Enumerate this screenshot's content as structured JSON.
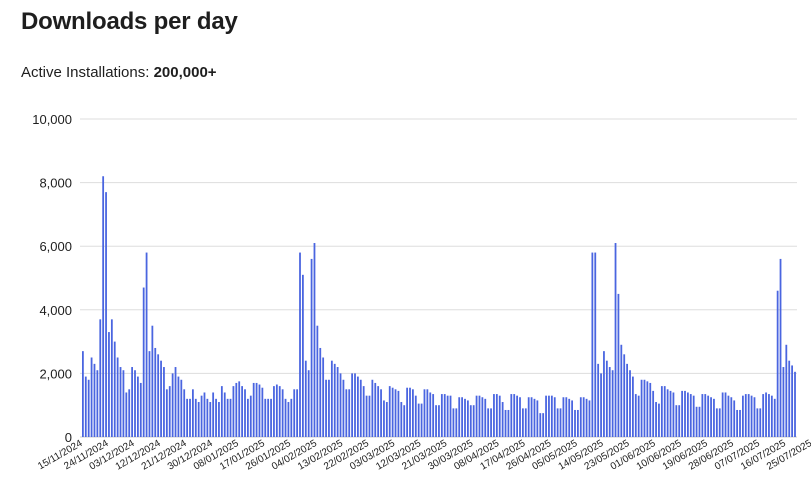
{
  "page": {
    "title": "Downloads per day",
    "installs_label": "Active Installations:",
    "installs_value": "200,000+"
  },
  "chart_data": {
    "type": "bar",
    "title": "Downloads per day",
    "xlabel": "",
    "ylabel": "",
    "ylim": [
      0,
      10000
    ],
    "yticks": [
      0,
      2000,
      4000,
      6000,
      8000,
      10000
    ],
    "ytick_labels": [
      "0",
      "2,000",
      "4,000",
      "6,000",
      "8,000",
      "10,000"
    ],
    "grid": true,
    "bar_color": "#4a65e0",
    "gridline_color": "#dddddd",
    "start_date": "15/11/2024",
    "xtick_labels": [
      "15/11/2024",
      "24/11/2024",
      "03/12/2024",
      "12/12/2024",
      "21/12/2024",
      "30/12/2024",
      "08/01/2025",
      "17/01/2025",
      "26/01/2025",
      "04/02/2025",
      "13/02/2025",
      "22/02/2025",
      "03/03/2025",
      "12/03/2025",
      "21/03/2025",
      "30/03/2025",
      "08/04/2025",
      "17/04/2025",
      "26/04/2025",
      "05/05/2025",
      "14/05/2025",
      "23/05/2025",
      "01/06/2025",
      "10/06/2025",
      "19/06/2025",
      "28/06/2025",
      "07/07/2025",
      "16/07/2025",
      "25/07/2025"
    ],
    "xtick_every": 9,
    "values": [
      2700,
      1900,
      1800,
      2500,
      2300,
      2100,
      3700,
      8200,
      7700,
      3300,
      3700,
      3000,
      2500,
      2200,
      2100,
      1400,
      1500,
      2200,
      2100,
      1900,
      1700,
      4700,
      5800,
      2700,
      3500,
      2800,
      2600,
      2400,
      2200,
      1500,
      1600,
      2000,
      2200,
      1900,
      1800,
      1500,
      1200,
      1200,
      1500,
      1200,
      1100,
      1300,
      1400,
      1200,
      1100,
      1400,
      1200,
      1100,
      1600,
      1400,
      1200,
      1200,
      1600,
      1700,
      1750,
      1600,
      1500,
      1200,
      1300,
      1700,
      1700,
      1650,
      1550,
      1200,
      1200,
      1200,
      1600,
      1650,
      1600,
      1500,
      1200,
      1100,
      1200,
      1500,
      1500,
      5800,
      5100,
      2400,
      2100,
      5600,
      6100,
      3500,
      2800,
      2500,
      1800,
      1800,
      2400,
      2300,
      2200,
      2000,
      1800,
      1500,
      1500,
      2000,
      2000,
      1900,
      1800,
      1600,
      1300,
      1300,
      1800,
      1700,
      1600,
      1500,
      1150,
      1100,
      1600,
      1550,
      1500,
      1450,
      1100,
      1000,
      1550,
      1550,
      1500,
      1300,
      1050,
      1050,
      1500,
      1500,
      1400,
      1350,
      1000,
      1000,
      1350,
      1350,
      1300,
      1300,
      900,
      900,
      1250,
      1250,
      1200,
      1150,
      1000,
      1000,
      1300,
      1300,
      1250,
      1200,
      900,
      900,
      1350,
      1350,
      1300,
      1100,
      850,
      850,
      1350,
      1350,
      1300,
      1250,
      900,
      900,
      1250,
      1250,
      1200,
      1150,
      750,
      750,
      1300,
      1300,
      1300,
      1250,
      900,
      900,
      1250,
      1250,
      1200,
      1150,
      850,
      850,
      1250,
      1250,
      1200,
      1150,
      5800,
      5800,
      2300,
      2000,
      2700,
      2400,
      2200,
      2100,
      6100,
      4500,
      2900,
      2600,
      2300,
      2100,
      1900,
      1350,
      1300,
      1800,
      1800,
      1750,
      1700,
      1450,
      1100,
      1050,
      1600,
      1600,
      1500,
      1450,
      1400,
      1000,
      1000,
      1450,
      1450,
      1400,
      1350,
      1300,
      950,
      950,
      1350,
      1350,
      1300,
      1250,
      1200,
      900,
      900,
      1400,
      1400,
      1300,
      1250,
      1150,
      850,
      850,
      1300,
      1350,
      1350,
      1300,
      1250,
      900,
      900,
      1350,
      1400,
      1350,
      1300,
      1200,
      4600,
      5600,
      2200,
      2900,
      2400,
      2250,
      2050
    ]
  }
}
